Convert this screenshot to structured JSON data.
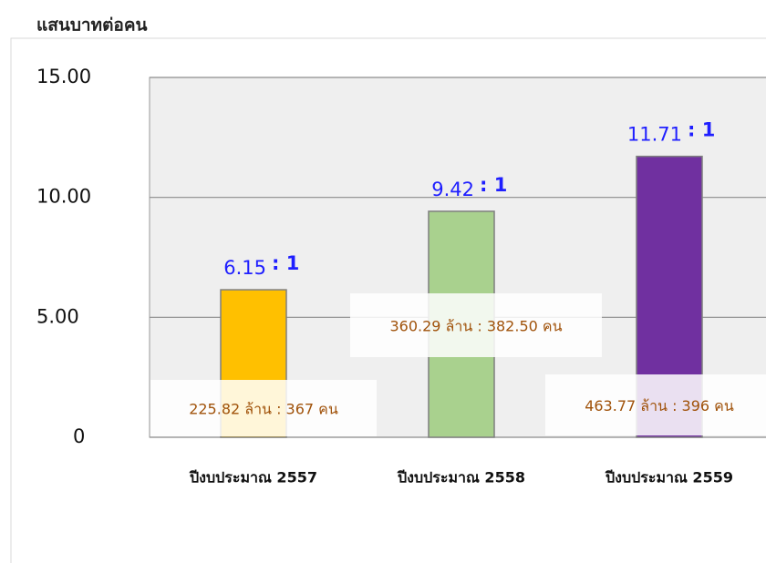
{
  "chart_data": {
    "type": "bar",
    "y_axis_title": "แสนบาทต่อคน",
    "categories": [
      "ปีงบประมาณ 2557",
      "ปีงบประมาณ 2558",
      "ปีงบประมาณ 2559"
    ],
    "values": [
      6.15,
      9.42,
      11.71
    ],
    "colors": [
      "#ffc000",
      "#a9d18e",
      "#7030a0"
    ],
    "ratio_labels": [
      ": 1",
      ": 1",
      ": 1"
    ],
    "annotations": [
      "225.82 ล้าน : 367 คน",
      "360.29 ล้าน : 382.50 คน",
      "463.77 ล้าน : 396 คน"
    ],
    "ylim": [
      0,
      15
    ],
    "yticks": [
      0,
      {
        "value": 5,
        "label": "5.00"
      },
      {
        "value": 10,
        "label": "10.00"
      },
      {
        "value": 15,
        "label": "15.00"
      }
    ],
    "grid": true
  }
}
